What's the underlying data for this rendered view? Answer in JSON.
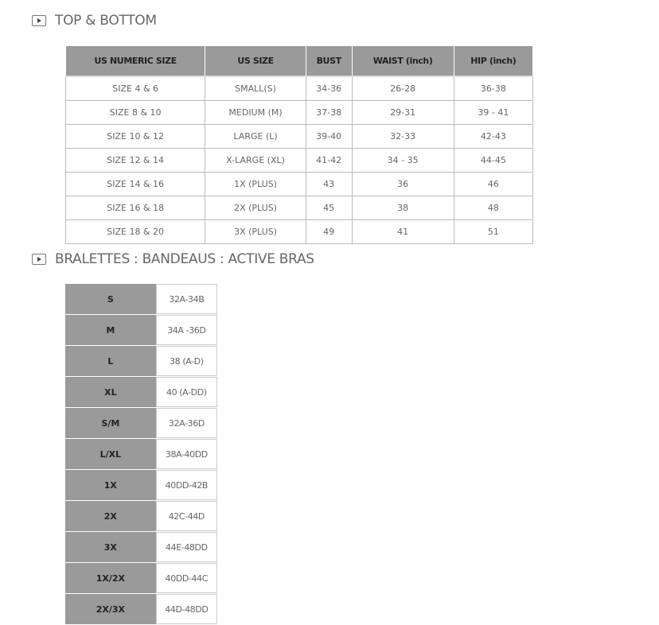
{
  "section1": {
    "title": "TOP & BOTTOM",
    "icon": "play-icon",
    "headers": [
      "US NUMERIC SIZE",
      "US SIZE",
      "BUST",
      "WAIST (inch)",
      "HIP (inch)"
    ],
    "rows": [
      [
        "SIZE 4 & 6",
        "SMALL(S)",
        "34-36",
        "26-28",
        "36-38"
      ],
      [
        "SIZE 8 & 10",
        "MEDIUM (M)",
        "37-38",
        "29-31",
        "39 - 41"
      ],
      [
        "SIZE 10 & 12",
        "LARGE (L)",
        "39-40",
        "32-33",
        "42-43"
      ],
      [
        "SIZE 12 & 14",
        "X-LARGE (XL)",
        "41-42",
        "34 - 35",
        "44-45"
      ],
      [
        "SIZE 14 & 16",
        "1X (PLUS)",
        "43",
        "36",
        "46"
      ],
      [
        "SIZE 16 & 18",
        "2X (PLUS)",
        "45",
        "38",
        "48"
      ],
      [
        "SIZE 18 & 20",
        "3X (PLUS)",
        "49",
        "41",
        "51"
      ]
    ]
  },
  "section2": {
    "title": "BRALETTES : BANDEAUS : ACTIVE BRAS",
    "icon": "play-icon",
    "rows": [
      [
        "S",
        "32A-34B"
      ],
      [
        "M",
        "34A -36D"
      ],
      [
        "L",
        "38 (A-D)"
      ],
      [
        "XL",
        "40 (A-DD)"
      ],
      [
        "S/M",
        "32A-36D"
      ],
      [
        "L/XL",
        "38A-40DD"
      ],
      [
        "1X",
        "40DD-42B"
      ],
      [
        "2X",
        "42C-44D"
      ],
      [
        "3X",
        "44E-48DD"
      ],
      [
        "1X/2X",
        "40DD-44C"
      ],
      [
        "2X/3X",
        "44D-48DD"
      ]
    ]
  },
  "colors": {
    "header_bg": "#9a9a9a",
    "border": "#bbbbbb"
  }
}
